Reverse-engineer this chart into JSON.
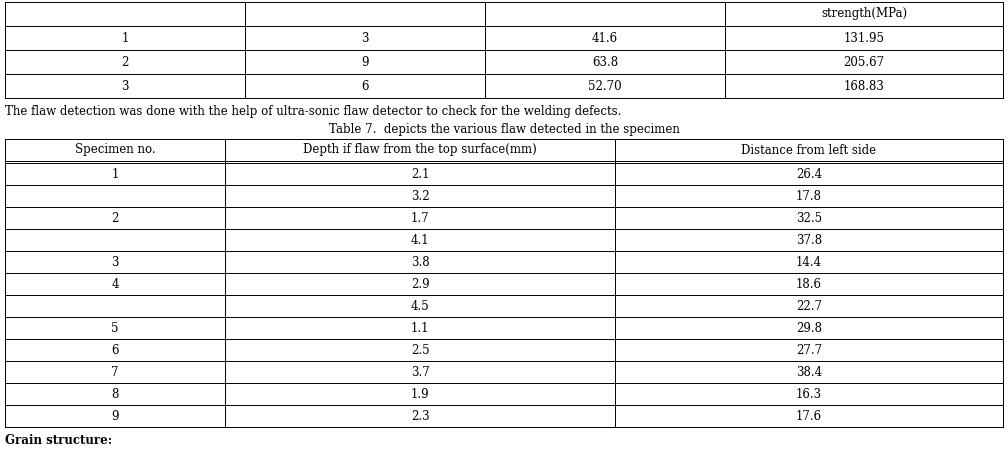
{
  "top_table": {
    "headers": [
      "",
      "",
      "",
      "strength(MPa)"
    ],
    "rows": [
      [
        "1",
        "3",
        "41.6",
        "131.95"
      ],
      [
        "2",
        "9",
        "63.8",
        "205.67"
      ],
      [
        "3",
        "6",
        "52.70",
        "168.83"
      ]
    ]
  },
  "caption_text": "The flaw detection was done with the help of ultra-sonic flaw detector to check for the welding defects.",
  "table_title_normal": "Table 7.  depicts the various flaw detected in the specimen",
  "table_title_bold_end": ".",
  "main_table": {
    "headers": [
      "Specimen no.",
      "Depth if flaw from the top surface(mm)",
      "Distance from left side"
    ],
    "rows": [
      [
        "1",
        "2.1",
        "26.4"
      ],
      [
        "",
        "3.2",
        "17.8"
      ],
      [
        "2",
        "1.7",
        "32.5"
      ],
      [
        "",
        "4.1",
        "37.8"
      ],
      [
        "3",
        "3.8",
        "14.4"
      ],
      [
        "4",
        "2.9",
        "18.6"
      ],
      [
        "",
        "4.5",
        "22.7"
      ],
      [
        "5",
        "1.1",
        "29.8"
      ],
      [
        "6",
        "2.5",
        "27.7"
      ],
      [
        "7",
        "3.7",
        "38.4"
      ],
      [
        "8",
        "1.9",
        "16.3"
      ],
      [
        "9",
        "2.3",
        "17.6"
      ]
    ],
    "merged_rows": [
      [
        0,
        1
      ],
      [
        2,
        3
      ],
      [
        5,
        6
      ]
    ]
  },
  "bottom_text": "Grain structure:",
  "bg_color": "#ffffff",
  "font_size": 8.5,
  "lw": 0.7
}
